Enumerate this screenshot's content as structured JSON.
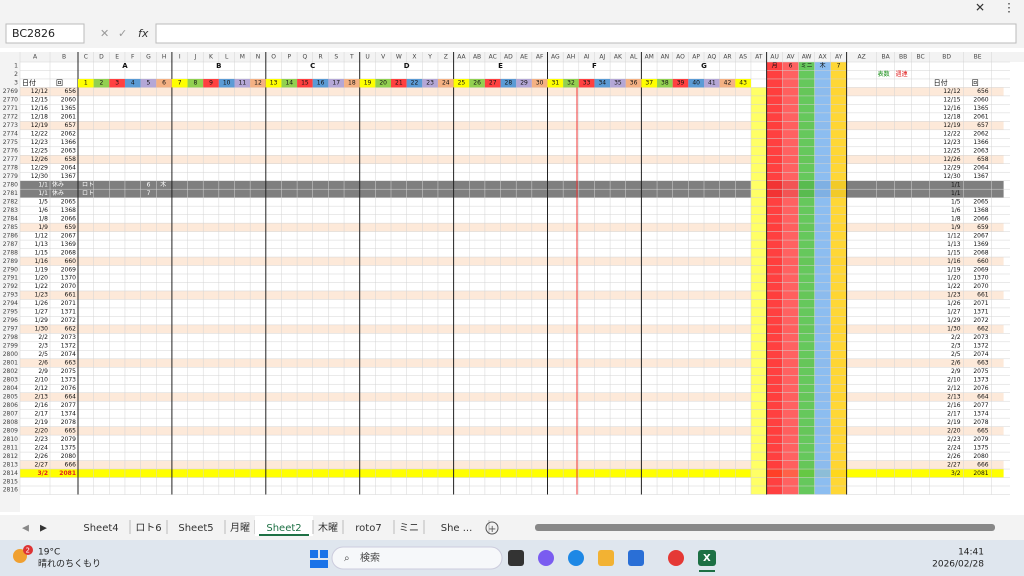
{
  "window": {
    "name_box": "BC2826",
    "fx": "fx"
  },
  "columns": [
    "A",
    "B",
    "C",
    "D",
    "E",
    "F",
    "G",
    "H",
    "I",
    "J",
    "K",
    "L",
    "M",
    "N",
    "O",
    "P",
    "Q",
    "R",
    "S",
    "T",
    "U",
    "V",
    "W",
    "X",
    "Y",
    "Z",
    "AA",
    "AB",
    "AC",
    "AD",
    "AE",
    "AF",
    "AG",
    "AH",
    "AI",
    "AJ",
    "AK",
    "AL",
    "AM",
    "AN",
    "AO",
    "AP",
    "AQ",
    "AR",
    "AS",
    "AT",
    "AU",
    "AV",
    "AW",
    "AX",
    "AY",
    "AZ",
    "BA",
    "BB",
    "BC",
    "BD",
    "BE"
  ],
  "groups": [
    "A",
    "B",
    "C",
    "D",
    "E",
    "F",
    "G"
  ],
  "header": {
    "top_rows": [
      1,
      2,
      3
    ],
    "date": "日付",
    "kai": "回",
    "numbers": [
      1,
      2,
      3,
      4,
      5,
      6,
      7,
      8,
      9,
      10,
      11,
      12,
      13,
      14,
      15,
      16,
      17,
      18,
      19,
      20,
      21,
      22,
      23,
      24,
      25,
      26,
      27,
      28,
      29,
      30,
      31,
      32,
      33,
      34,
      35,
      36,
      37,
      38,
      39,
      40,
      41,
      42,
      43
    ],
    "right_labels": [
      "月",
      "6",
      "ミニ",
      "木",
      "7"
    ],
    "hyo": "表数",
    "shuren": "週連"
  },
  "rows": [
    {
      "row": 2769,
      "date": "12/12",
      "kai": 656
    },
    {
      "row": 2770,
      "date": "12/15",
      "kai": 2060
    },
    {
      "row": 2771,
      "date": "12/16",
      "kai": 1365
    },
    {
      "row": 2772,
      "date": "12/18",
      "kai": 2061
    },
    {
      "row": 2773,
      "date": "12/19",
      "kai": 657
    },
    {
      "row": 2774,
      "date": "12/22",
      "kai": 2062
    },
    {
      "row": 2775,
      "date": "12/23",
      "kai": 1366
    },
    {
      "row": 2776,
      "date": "12/25",
      "kai": 2063
    },
    {
      "row": 2777,
      "date": "12/26",
      "kai": 658
    },
    {
      "row": 2778,
      "date": "12/29",
      "kai": 2064
    },
    {
      "row": 2779,
      "date": "12/30",
      "kai": 1367
    },
    {
      "row": 2780,
      "date": "1/1",
      "note": [
        "休み",
        "ロト",
        "6",
        "木"
      ]
    },
    {
      "row": 2781,
      "date": "1/1",
      "note": [
        "休み",
        "ロト",
        "7"
      ]
    },
    {
      "row": 2782,
      "date": "1/5",
      "kai": 2065
    },
    {
      "row": 2783,
      "date": "1/6",
      "kai": 1368
    },
    {
      "row": 2784,
      "date": "1/8",
      "kai": 2066
    },
    {
      "row": 2785,
      "date": "1/9",
      "kai": 659
    },
    {
      "row": 2786,
      "date": "1/12",
      "kai": 2067
    },
    {
      "row": 2787,
      "date": "1/13",
      "kai": 1369
    },
    {
      "row": 2788,
      "date": "1/15",
      "kai": 2068
    },
    {
      "row": 2789,
      "date": "1/16",
      "kai": 660
    },
    {
      "row": 2790,
      "date": "1/19",
      "kai": 2069
    },
    {
      "row": 2791,
      "date": "1/20",
      "kai": 1370
    },
    {
      "row": 2792,
      "date": "1/22",
      "kai": 2070
    },
    {
      "row": 2793,
      "date": "1/23",
      "kai": 661
    },
    {
      "row": 2794,
      "date": "1/26",
      "kai": 2071
    },
    {
      "row": 2795,
      "date": "1/27",
      "kai": 1371
    },
    {
      "row": 2796,
      "date": "1/29",
      "kai": 2072
    },
    {
      "row": 2797,
      "date": "1/30",
      "kai": 662
    },
    {
      "row": 2798,
      "date": "2/2",
      "kai": 2073
    },
    {
      "row": 2799,
      "date": "2/3",
      "kai": 1372
    },
    {
      "row": 2800,
      "date": "2/5",
      "kai": 2074
    },
    {
      "row": 2801,
      "date": "2/6",
      "kai": 663
    },
    {
      "row": 2802,
      "date": "2/9",
      "kai": 2075
    },
    {
      "row": 2803,
      "date": "2/10",
      "kai": 1373
    },
    {
      "row": 2804,
      "date": "2/12",
      "kai": 2076
    },
    {
      "row": 2805,
      "date": "2/13",
      "kai": 664
    },
    {
      "row": 2806,
      "date": "2/16",
      "kai": 2077
    },
    {
      "row": 2807,
      "date": "2/17",
      "kai": 1374
    },
    {
      "row": 2808,
      "date": "2/19",
      "kai": 2078
    },
    {
      "row": 2809,
      "date": "2/20",
      "kai": 665
    },
    {
      "row": 2810,
      "date": "2/23",
      "kai": 2079
    },
    {
      "row": 2811,
      "date": "2/24",
      "kai": 1375
    },
    {
      "row": 2812,
      "date": "2/26",
      "kai": 2080
    },
    {
      "row": 2813,
      "date": "2/27",
      "kai": 666
    },
    {
      "row": 2814,
      "date": "3/2",
      "kai": 2081
    },
    {
      "row": 2815
    },
    {
      "row": 2816
    }
  ],
  "sheet_tabs": [
    "Sheet4",
    "ロト6",
    "Sheet5",
    "月曜",
    "Sheet2",
    "木曜",
    "roto7",
    "ミニ",
    "She ..."
  ],
  "active_tab": "Sheet2",
  "taskbar": {
    "badge": "2",
    "temp": "19°C",
    "weather": "晴れのちくもり",
    "search": "検索",
    "time": "14:41",
    "date": "2026/02/28"
  }
}
